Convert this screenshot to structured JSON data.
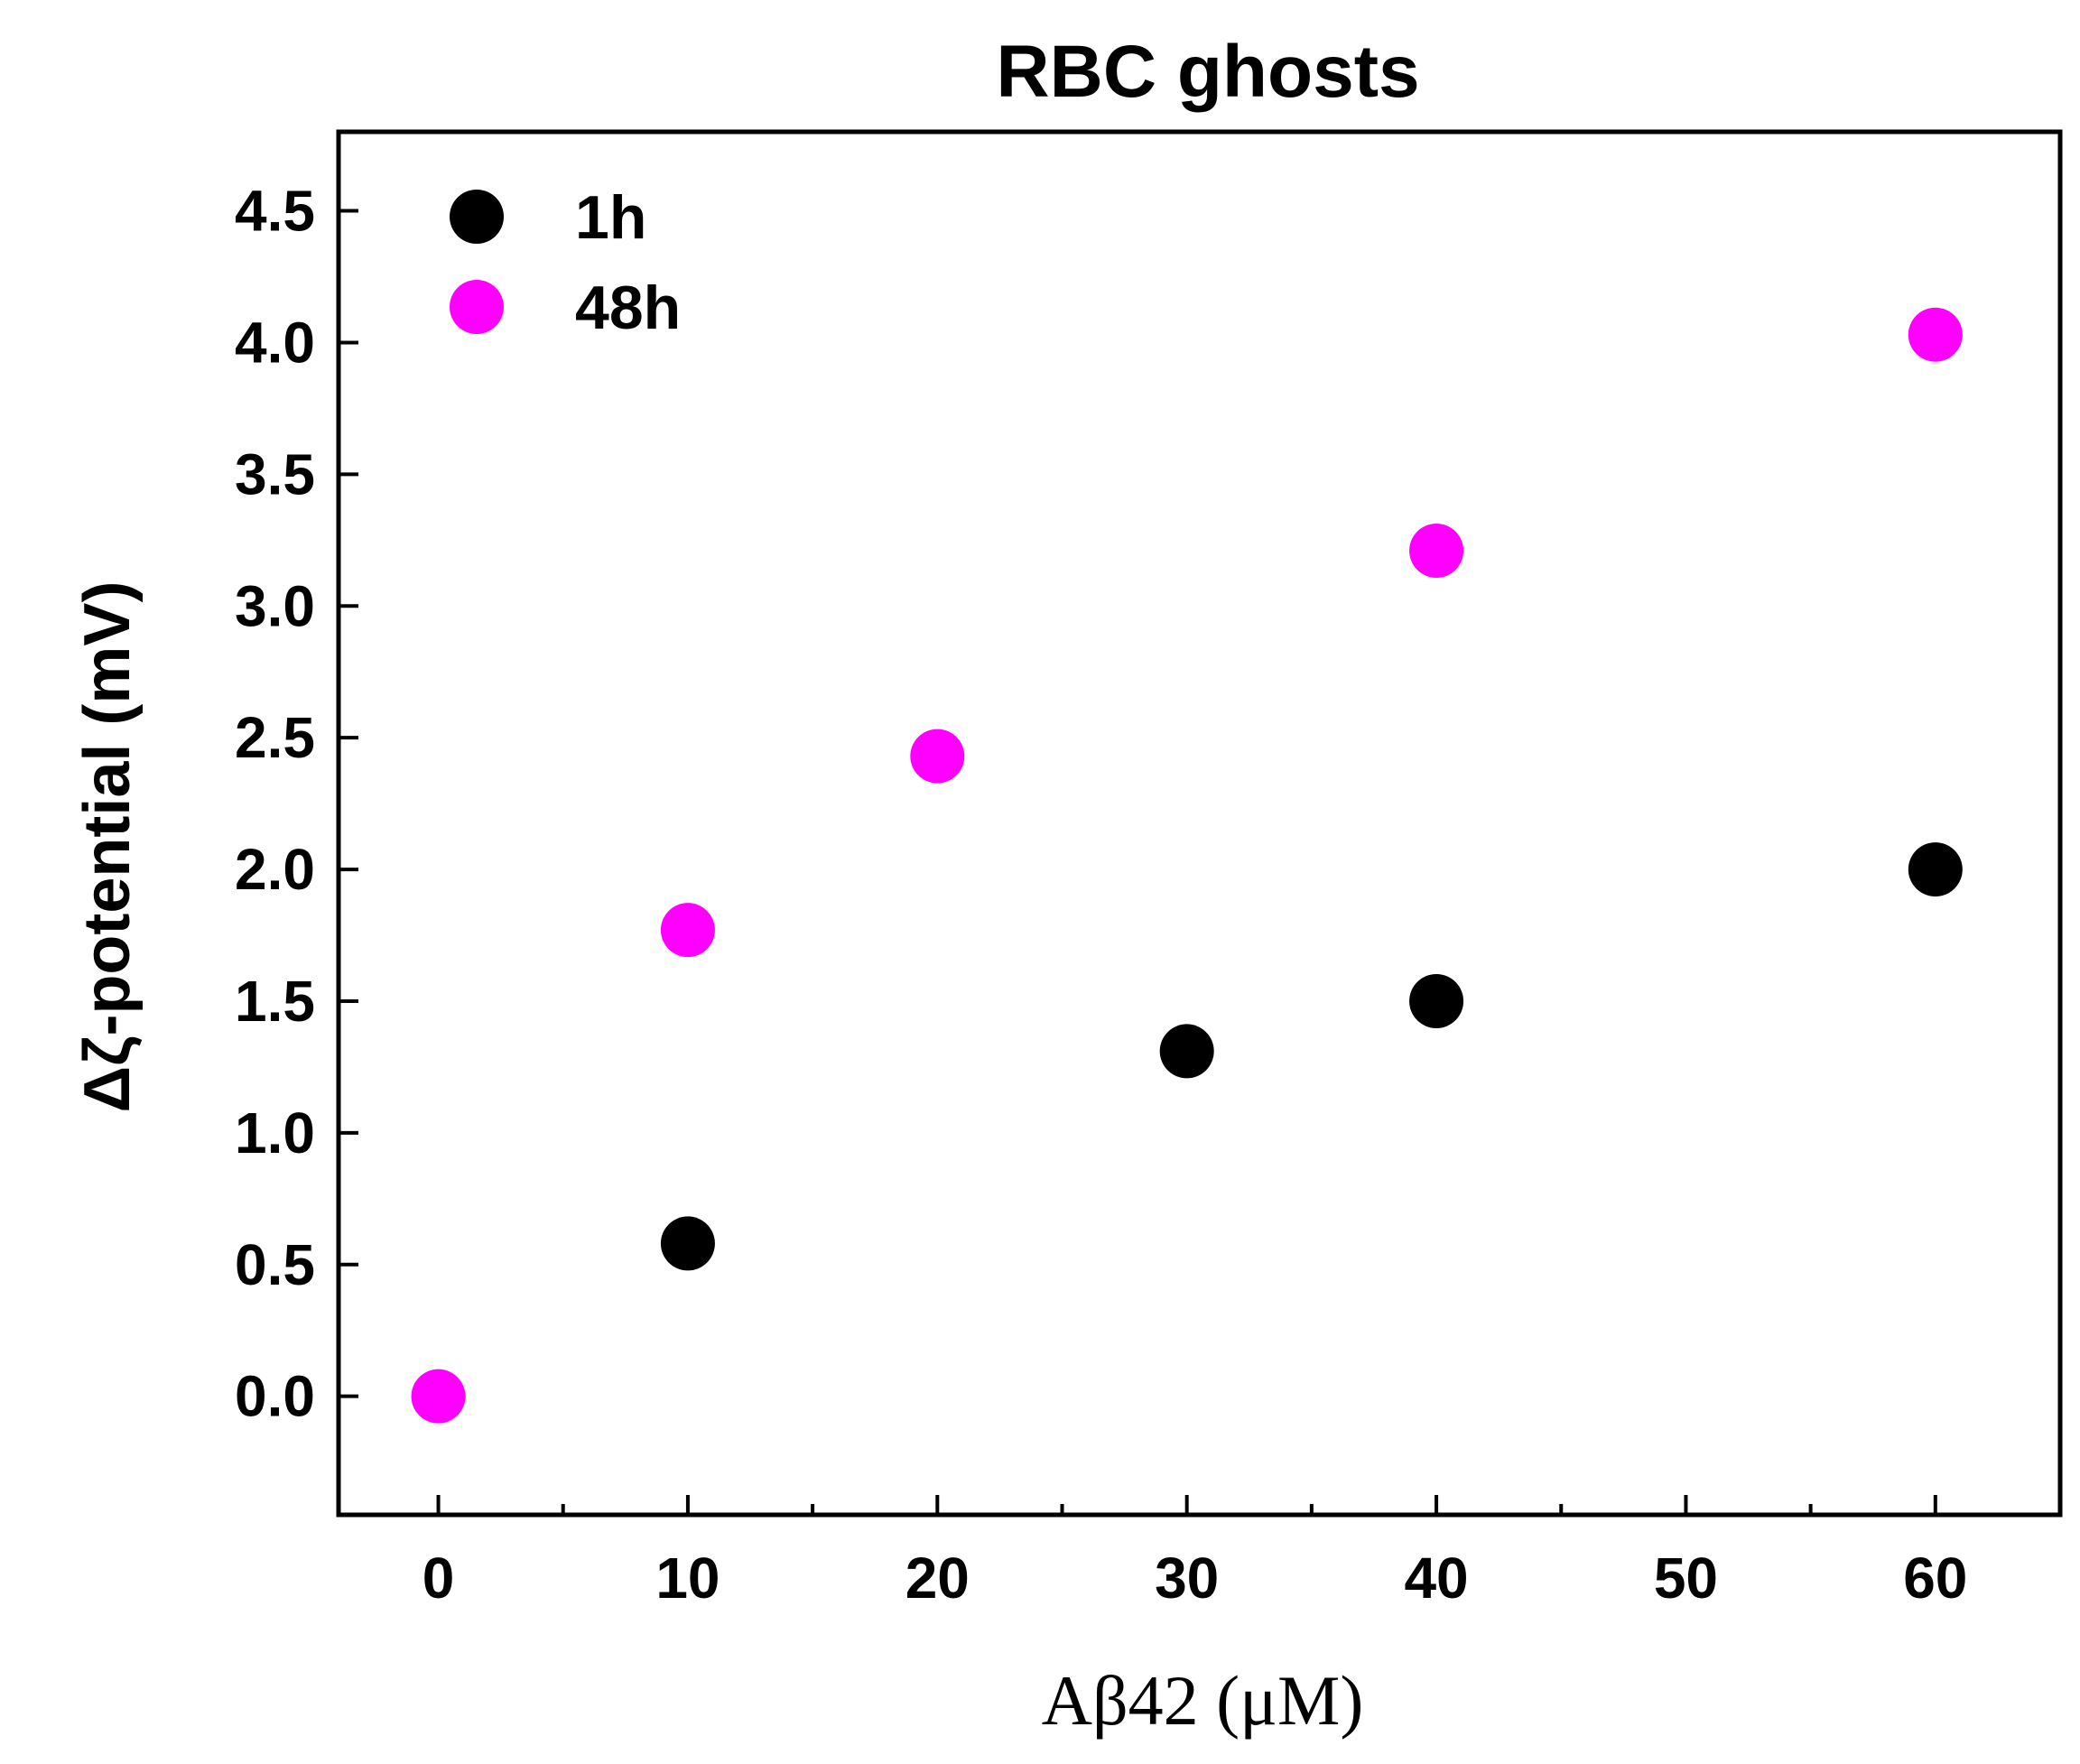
{
  "chart_data": {
    "type": "scatter",
    "title": "RBC ghosts",
    "xlabel": "Aβ42 (μM)",
    "ylabel": "Δζ-potential (mV)",
    "xlim": [
      -4,
      65
    ],
    "ylim": [
      -0.45,
      4.8
    ],
    "x_major_ticks": [
      0,
      10,
      20,
      30,
      40,
      50,
      60
    ],
    "x_tick_labels": [
      "0",
      "10",
      "20",
      "30",
      "40",
      "50",
      "60"
    ],
    "x_minor_ticks": [
      5,
      15,
      25,
      35,
      45,
      55
    ],
    "y_ticks": [
      0.0,
      0.5,
      1.0,
      1.5,
      2.0,
      2.5,
      3.0,
      3.5,
      4.0,
      4.5
    ],
    "y_tick_labels": [
      "0.0",
      "0.5",
      "1.0",
      "1.5",
      "2.0",
      "2.5",
      "3.0",
      "3.5",
      "4.0",
      "4.5"
    ],
    "grid": false,
    "legend_position": "top-left",
    "series": [
      {
        "name": "1h",
        "color": "#000000",
        "points": [
          {
            "x": 10,
            "y": 0.58
          },
          {
            "x": 30,
            "y": 1.31
          },
          {
            "x": 40,
            "y": 1.5
          },
          {
            "x": 60,
            "y": 2.0
          }
        ]
      },
      {
        "name": "48h",
        "color": "#ff00ff",
        "points": [
          {
            "x": 0,
            "y": 0.0
          },
          {
            "x": 10,
            "y": 1.77
          },
          {
            "x": 20,
            "y": 2.43
          },
          {
            "x": 40,
            "y": 3.21
          },
          {
            "x": 60,
            "y": 4.03
          }
        ]
      }
    ]
  }
}
